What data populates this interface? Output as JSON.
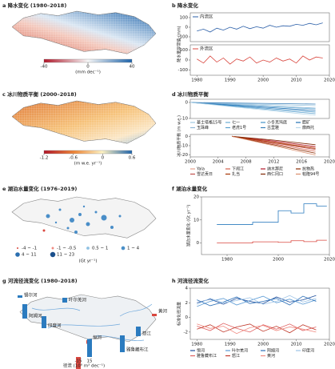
{
  "chart_data": [
    {
      "type": "map",
      "title": "a 降水变化 (1980–2018)",
      "xlim": [
        -40,
        40
      ],
      "xticks": [
        -40,
        0,
        40
      ],
      "unit": "(mm dec⁻¹)"
    },
    {
      "type": "line",
      "title": "b 降水变化",
      "ylabel": "降水量异常值 (mm)",
      "legend": "upper left",
      "x": [
        1980,
        1982,
        1984,
        1986,
        1988,
        1990,
        1992,
        1994,
        1996,
        1998,
        2000,
        2002,
        2004,
        2006,
        2008,
        2010,
        2012,
        2014,
        2016,
        2018
      ],
      "xlim": [
        1978,
        2020
      ],
      "ylim": [
        -150,
        150
      ],
      "yticks": [
        -100,
        0,
        100
      ],
      "series": [
        {
          "name": "内流区",
          "color": "#2b5fa8",
          "values": [
            -40,
            -20,
            -50,
            -10,
            -30,
            0,
            -20,
            10,
            -15,
            5,
            -10,
            20,
            0,
            15,
            10,
            30,
            20,
            40,
            25,
            45
          ]
        }
      ]
    },
    {
      "type": "line",
      "legend": "upper left",
      "x": [
        1980,
        1982,
        1984,
        1986,
        1988,
        1990,
        1992,
        1994,
        1996,
        1998,
        2000,
        2002,
        2004,
        2006,
        2008,
        2010,
        2012,
        2014,
        2016,
        2018
      ],
      "xlim": [
        1978,
        2020
      ],
      "xticks": [
        1980,
        1990,
        2000,
        2010,
        2020
      ],
      "ylim": [
        -150,
        150
      ],
      "yticks": [
        -100,
        0,
        100
      ],
      "series": [
        {
          "name": "外流区",
          "color": "#d9473f",
          "values": [
            10,
            -30,
            40,
            -20,
            20,
            -40,
            10,
            -10,
            30,
            -30,
            0,
            -20,
            20,
            -10,
            10,
            -30,
            40,
            0,
            30,
            20
          ]
        }
      ]
    },
    {
      "type": "map",
      "title": "c 冰川物质平衡 (2000–2018)",
      "xlim": [
        -1.2,
        0.6
      ],
      "xticks": [
        -1.2,
        -0.6,
        0,
        0.6
      ],
      "unit": "(m w.e. yr⁻¹)"
    },
    {
      "type": "line",
      "title": "d 冰川物质平衡",
      "ylabel": "冰川物质平衡 (m w.e.)",
      "legend": "below",
      "xlim": [
        2000,
        2020
      ],
      "ylim": [
        -10,
        2
      ],
      "yticks": [
        0,
        -10
      ],
      "series": [
        {
          "name": "慕士塔格15号",
          "color": "#9ec9e2",
          "x": [
            2000,
            2009,
            2018
          ],
          "values": [
            0,
            -1,
            -2
          ]
        },
        {
          "name": "七一",
          "color": "#6baed6",
          "x": [
            2000,
            2009,
            2018
          ],
          "values": [
            0,
            -2,
            -4
          ]
        },
        {
          "name": "小冬克玛底",
          "color": "#4292c6",
          "x": [
            2000,
            2009,
            2018
          ],
          "values": [
            0,
            -3,
            -6
          ]
        },
        {
          "name": "腊矿",
          "color": "#2171b5",
          "x": [
            2000,
            2009,
            2018
          ],
          "values": [
            0,
            -2.5,
            -5
          ]
        },
        {
          "name": "玉珠峰",
          "color": "#8fb8d8",
          "x": [
            2000,
            2009,
            2018
          ],
          "values": [
            0,
            -1.5,
            -3.5
          ]
        },
        {
          "name": "老虎1号",
          "color": "#5aa0cf",
          "x": [
            2000,
            2009,
            2018
          ],
          "values": [
            0,
            -3.5,
            -7
          ]
        },
        {
          "name": "古里雅",
          "color": "#3a7fb8",
          "x": [
            2000,
            2009,
            2018
          ],
          "values": [
            0,
            -0.5,
            -1
          ]
        },
        {
          "name": "廓西托",
          "color": "#b8d8ea",
          "x": [
            2000,
            2009,
            2018
          ],
          "values": [
            0,
            -4,
            -8
          ]
        }
      ]
    },
    {
      "type": "line",
      "legend": "below",
      "xlim": [
        2000,
        2020
      ],
      "xticks": [
        2000,
        2004,
        2008,
        2012,
        2016,
        2020
      ],
      "ylim": [
        -22,
        2
      ],
      "yticks": [
        0,
        -10,
        -20
      ],
      "series": [
        {
          "name": "Yala",
          "color": "#e6a08a",
          "x": [
            2006,
            2012,
            2018
          ],
          "values": [
            0,
            -6,
            -12
          ]
        },
        {
          "name": "下闹江",
          "color": "#d6604d",
          "x": [
            2006,
            2012,
            2018
          ],
          "values": [
            0,
            -8,
            -16
          ]
        },
        {
          "name": "纳木那尼",
          "color": "#b2182b",
          "x": [
            2006,
            2012,
            2018
          ],
          "values": [
            0,
            -5,
            -11
          ]
        },
        {
          "name": "抗物热",
          "color": "#8c2d04",
          "x": [
            2006,
            2012,
            2018
          ],
          "values": [
            0,
            -9,
            -18
          ]
        },
        {
          "name": "雪达贡日",
          "color": "#c0504d",
          "x": [
            2006,
            2012,
            2018
          ],
          "values": [
            0,
            -7,
            -14
          ]
        },
        {
          "name": "扎当",
          "color": "#a63603",
          "x": [
            2006,
            2012,
            2018
          ],
          "values": [
            0,
            -6.5,
            -13
          ]
        },
        {
          "name": "西仁冈口",
          "color": "#7f2704",
          "x": [
            2006,
            2012,
            2018
          ],
          "values": [
            0,
            -4,
            -9
          ]
        },
        {
          "name": "帕隆94号",
          "color": "#d98c6b",
          "x": [
            2006,
            2012,
            2018
          ],
          "values": [
            0,
            -10,
            -20
          ]
        }
      ]
    },
    {
      "type": "bubble-map",
      "title": "e 湖泊水量变化 (1976–2019)",
      "unit": "(Gt yr⁻¹)",
      "categories": [
        "-4 ~ -1",
        "-1 ~ -0.5",
        "0.5 ~ 1",
        "1 ~ 4",
        "4 ~ 11",
        "11 ~ 23"
      ],
      "colors": [
        "#d9473f",
        "#f08a80",
        "#8fc1e3",
        "#4a90c8",
        "#2b6fb0",
        "#1a4f8c"
      ]
    },
    {
      "type": "line",
      "title": "f 湖泊水量变化",
      "ylabel": "湖泊水量变化 (Gt yr⁻¹)",
      "step": true,
      "xlim": [
        1970,
        2020
      ],
      "xticks": [
        1980,
        2000,
        2020
      ],
      "ylim": [
        -5,
        20
      ],
      "yticks": [
        0,
        10,
        20
      ],
      "series": [
        {
          "color": "#2b7bbf",
          "x": [
            1976,
            1990,
            2000,
            2005,
            2010,
            2015,
            2019
          ],
          "values": [
            8,
            9,
            14,
            13,
            17,
            16,
            16
          ]
        },
        {
          "color": "#d9473f",
          "x": [
            1976,
            1990,
            2000,
            2005,
            2010,
            2015,
            2019
          ],
          "values": [
            0,
            0.5,
            0.3,
            1,
            0.6,
            1.2,
            1.2
          ]
        }
      ]
    },
    {
      "type": "bar-map",
      "title": "g 河流径流变化 (1980–2018)",
      "unit": "径流 (10⁸ m³ dec⁻¹)",
      "xticks": [
        -15,
        15
      ],
      "categories": [
        "锡尔河",
        "阿姆河",
        "叶尔羌河",
        "印度河",
        "恒河",
        "雅鲁藏布江",
        "怒江",
        "黄河"
      ],
      "values": [
        2,
        12,
        4,
        10,
        -3,
        14,
        8,
        -2
      ]
    },
    {
      "type": "line",
      "title": "h 河流径流变化",
      "ylabel": "标准化径流量",
      "legend": "below",
      "x": [
        1980,
        1984,
        1988,
        1992,
        1996,
        2000,
        2004,
        2008,
        2012,
        2016
      ],
      "xlim": [
        1978,
        2020
      ],
      "xticks": [
        1980,
        1990,
        2000,
        2010,
        2020
      ],
      "ylim": [
        -3,
        4
      ],
      "yticks": [
        -2,
        0,
        2,
        4
      ],
      "series": [
        {
          "name": "恒河",
          "color": "#1f4e9c",
          "values": [
            2,
            2.5,
            1.8,
            2.6,
            2.2,
            1.9,
            2.8,
            2.1,
            2.4,
            3
          ]
        },
        {
          "name": "叶尔羌河",
          "color": "#5b9bd5",
          "values": [
            1.5,
            2.2,
            2.6,
            1.7,
            2.3,
            2.9,
            2.0,
            2.5,
            1.8,
            2.4
          ]
        },
        {
          "name": "阿姆河",
          "color": "#2c6fb7",
          "values": [
            2.4,
            1.6,
            2.1,
            2.8,
            1.9,
            2.2,
            2.6,
            1.7,
            2.9,
            2.2
          ]
        },
        {
          "name": "印度河",
          "color": "#9dc3e6",
          "values": [
            1.8,
            2.6,
            2.0,
            2.3,
            2.7,
            1.8,
            2.2,
            3.0,
            2.1,
            2.6
          ]
        },
        {
          "name": "雅鲁藏布江",
          "color": "#e06060",
          "values": [
            -1.2,
            -1.8,
            -0.8,
            -1.5,
            -2,
            -1,
            -1.6,
            -0.9,
            -1.8,
            -1.3
          ]
        },
        {
          "name": "怒江",
          "color": "#c0392b",
          "values": [
            -1.6,
            -1,
            -2,
            -1.3,
            -0.9,
            -1.9,
            -1.2,
            -2.1,
            -1,
            -1.7
          ]
        },
        {
          "name": "黄河",
          "color": "#f08a80",
          "values": [
            -0.9,
            -1.5,
            -1.2,
            -2.2,
            -1.4,
            -1.1,
            -1.8,
            -1.3,
            -1.6,
            -2
          ]
        }
      ]
    }
  ]
}
